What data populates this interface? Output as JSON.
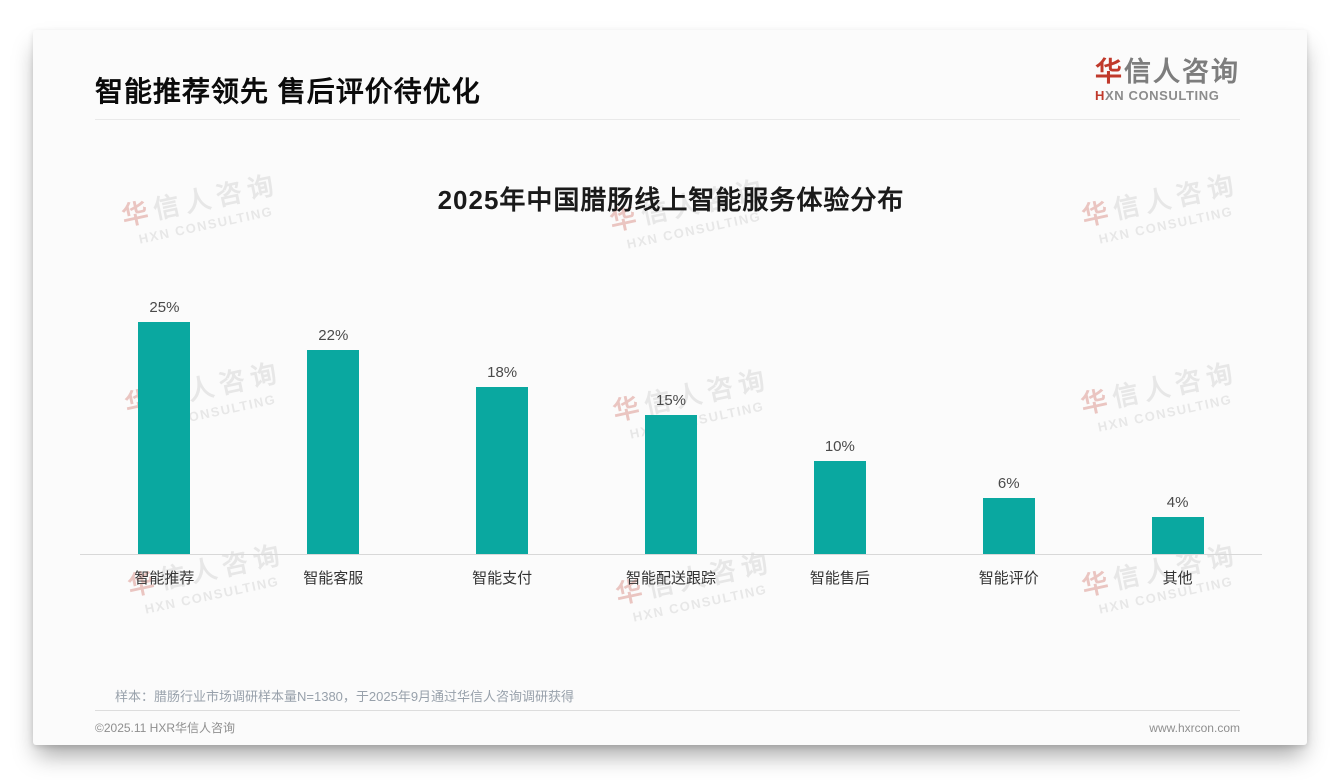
{
  "header": {
    "title": "智能推荐领先 售后评价待优化"
  },
  "logo": {
    "cn_accent": "华",
    "cn_rest": "信人咨询",
    "en_accent": "H",
    "en_rest": "XN CONSULTING"
  },
  "watermark": {
    "cn_accent": "华",
    "cn_rest": "信人咨询",
    "en": "HXN CONSULTING"
  },
  "chart_data": {
    "type": "bar",
    "title": "2025年中国腊肠线上智能服务体验分布",
    "categories": [
      "智能推荐",
      "智能客服",
      "智能支付",
      "智能配送跟踪",
      "智能售后",
      "智能评价",
      "其他"
    ],
    "values": [
      25,
      22,
      18,
      15,
      10,
      6,
      4
    ],
    "value_labels": [
      "25%",
      "22%",
      "18%",
      "15%",
      "10%",
      "6%",
      "4%"
    ],
    "unit": "%",
    "bar_color": "#0aa8a0",
    "ylim": [
      0,
      27
    ],
    "grid": false,
    "legend": false,
    "xlabel": "",
    "ylabel": ""
  },
  "footer": {
    "note": "样本：腊肠行业市场调研样本量N=1380，于2025年9月通过华信人咨询调研获得",
    "copyright": "©2025.11 HXR华信人咨询",
    "website": "www.hxrcon.com"
  },
  "colors": {
    "bar": "#0aa8a0",
    "logo_accent": "#c0392b"
  }
}
